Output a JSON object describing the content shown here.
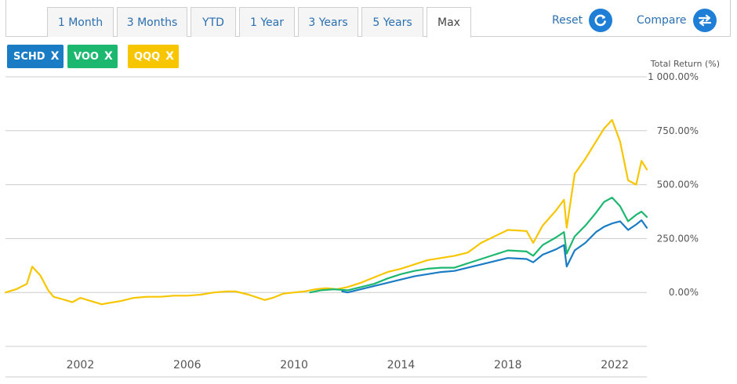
{
  "tabs": [
    {
      "label": "1 Month",
      "active": false
    },
    {
      "label": "3 Months",
      "active": false
    },
    {
      "label": "YTD",
      "active": false
    },
    {
      "label": "1 Year",
      "active": false
    },
    {
      "label": "3 Years",
      "active": false
    },
    {
      "label": "5 Years",
      "active": false
    },
    {
      "label": "Max",
      "active": true
    }
  ],
  "actions": {
    "reset_label": "Reset",
    "reset_icon": "refresh-icon",
    "compare_label": "Compare",
    "compare_icon": "swap-arrows-icon"
  },
  "tickers": [
    {
      "symbol": "SCHD",
      "remove_glyph": "X",
      "color": "#1a7cc4"
    },
    {
      "symbol": "VOO",
      "remove_glyph": "X",
      "color": "#1db870"
    },
    {
      "symbol": "QQQ",
      "remove_glyph": "X",
      "color": "#f7c600"
    }
  ],
  "chart_data": {
    "type": "line",
    "ylabel": "Total Return (%)",
    "ylim": [
      -250,
      1000
    ],
    "yticks": [
      0,
      250,
      500,
      750,
      1000
    ],
    "ytick_labels": [
      "0.00%",
      "250.00%",
      "500.00%",
      "750.00%",
      "1 000.00%"
    ],
    "xlim": [
      1999.2,
      2023.2
    ],
    "xticks": [
      2002,
      2006,
      2010,
      2014,
      2018,
      2022
    ],
    "xtick_labels": [
      "2002",
      "2006",
      "2010",
      "2014",
      "2018",
      "2022"
    ],
    "grid": true,
    "series": [
      {
        "name": "QQQ",
        "color": "#f7c600",
        "x": [
          1999.2,
          1999.6,
          2000.0,
          2000.2,
          2000.5,
          2000.8,
          2001.0,
          2001.3,
          2001.7,
          2002.0,
          2002.4,
          2002.8,
          2003.0,
          2003.5,
          2004.0,
          2004.5,
          2005.0,
          2005.5,
          2006.0,
          2006.5,
          2007.0,
          2007.5,
          2007.8,
          2008.3,
          2008.9,
          2009.2,
          2009.6,
          2010.0,
          2010.4,
          2010.8,
          2011.2,
          2011.6,
          2012.0,
          2012.5,
          2013.0,
          2013.5,
          2014.0,
          2014.5,
          2015.0,
          2015.5,
          2016.0,
          2016.5,
          2017.0,
          2017.5,
          2018.0,
          2018.7,
          2018.95,
          2019.3,
          2019.8,
          2020.1,
          2020.2,
          2020.5,
          2020.9,
          2021.3,
          2021.6,
          2021.9,
          2022.2,
          2022.5,
          2022.8,
          2023.0,
          2023.2
        ],
        "values": [
          0,
          15,
          40,
          120,
          80,
          10,
          -20,
          -30,
          -45,
          -25,
          -40,
          -55,
          -50,
          -40,
          -25,
          -20,
          -20,
          -15,
          -15,
          -10,
          0,
          5,
          5,
          -10,
          -35,
          -25,
          -5,
          0,
          5,
          15,
          20,
          15,
          25,
          45,
          70,
          95,
          110,
          130,
          150,
          160,
          170,
          185,
          230,
          260,
          290,
          285,
          230,
          310,
          380,
          430,
          300,
          550,
          620,
          700,
          760,
          800,
          700,
          520,
          500,
          610,
          570
        ]
      },
      {
        "name": "VOO",
        "color": "#1db870",
        "x": [
          2010.6,
          2011.0,
          2011.5,
          2012.0,
          2012.5,
          2013.0,
          2013.5,
          2014.0,
          2014.5,
          2015.0,
          2015.5,
          2016.0,
          2016.5,
          2017.0,
          2017.5,
          2018.0,
          2018.7,
          2018.95,
          2019.3,
          2019.8,
          2020.1,
          2020.2,
          2020.5,
          2020.9,
          2021.3,
          2021.6,
          2021.9,
          2022.2,
          2022.5,
          2022.8,
          2023.0,
          2023.2
        ],
        "values": [
          0,
          10,
          15,
          10,
          25,
          40,
          65,
          85,
          100,
          110,
          115,
          115,
          135,
          155,
          175,
          195,
          190,
          170,
          220,
          255,
          280,
          180,
          260,
          310,
          370,
          420,
          440,
          400,
          330,
          360,
          375,
          350
        ]
      },
      {
        "name": "SCHD",
        "color": "#1a7cc4",
        "x": [
          2011.8,
          2012.0,
          2012.5,
          2013.0,
          2013.5,
          2014.0,
          2014.5,
          2015.0,
          2015.5,
          2016.0,
          2016.5,
          2017.0,
          2017.5,
          2018.0,
          2018.7,
          2018.95,
          2019.3,
          2019.8,
          2020.1,
          2020.2,
          2020.5,
          2020.9,
          2021.3,
          2021.6,
          2021.9,
          2022.2,
          2022.5,
          2022.8,
          2023.0,
          2023.2
        ],
        "values": [
          5,
          0,
          15,
          30,
          45,
          60,
          75,
          85,
          95,
          100,
          115,
          130,
          145,
          160,
          155,
          140,
          175,
          200,
          220,
          120,
          195,
          230,
          280,
          305,
          320,
          330,
          290,
          315,
          335,
          300
        ]
      }
    ]
  }
}
